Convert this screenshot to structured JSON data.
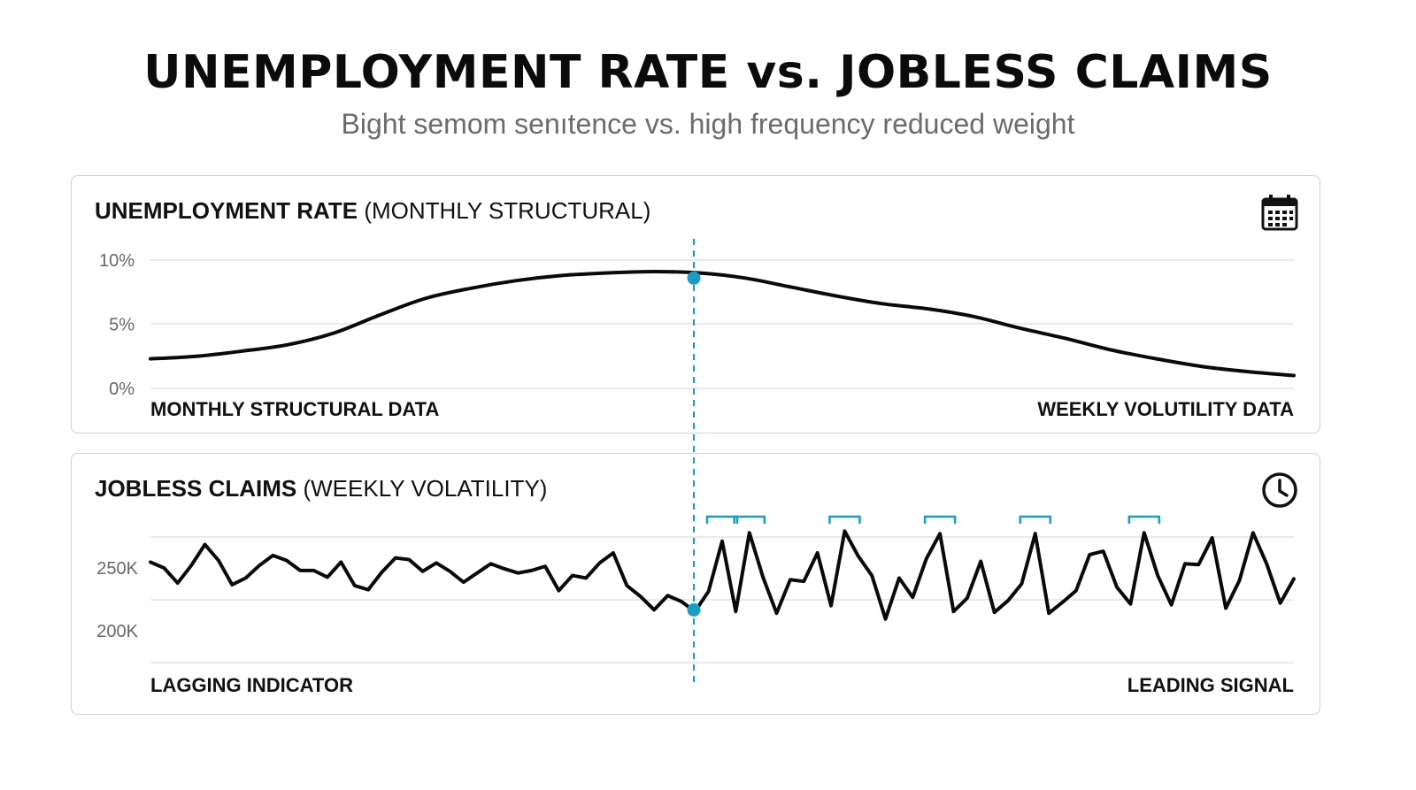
{
  "header": {
    "title": "UNEMPLOYMENT RATE vs. JOBLESS CLAIMS",
    "subtitle": "Bight semom senıtence vs. high frequency reduced weight"
  },
  "colors": {
    "line": "#0a0a0a",
    "accent": "#1a9cc4",
    "grid": "#dcdcdc",
    "tick": "#666666"
  },
  "icons": {
    "top_panel": "calendar-icon",
    "bottom_panel": "clock-icon"
  },
  "chart_data": [
    {
      "type": "line",
      "title_bold": "UNEMPLOYMENT RATE",
      "title_rest": "(MONTHLY STRUCTURAL)",
      "yticks": [
        "10%",
        "5%",
        "0%"
      ],
      "ytick_values": [
        10,
        5,
        0
      ],
      "ylim": [
        0,
        10
      ],
      "left_label": "MONTHLY STRUCTURAL DATA",
      "right_label": "WEEKLY VOLUTILITY DATA",
      "grid": true,
      "series": [
        {
          "values": [
            2.3,
            2.5,
            2.9,
            3.4,
            4.3,
            5.7,
            7.0,
            7.8,
            8.4,
            8.8,
            9.0,
            9.1,
            9.0,
            8.6,
            7.9,
            7.2,
            6.6,
            6.2,
            5.6,
            4.7,
            3.9,
            3.0,
            2.3,
            1.7,
            1.3,
            1.0
          ],
          "marker_index": 13
        }
      ]
    },
    {
      "type": "line",
      "title_bold": "JOBLESS CLAIMS",
      "title_rest": "(WEEKLY VOLATILITY)",
      "yticks": [
        "250K",
        "200K"
      ],
      "ytick_values": [
        250,
        200
      ],
      "ylim": [
        150,
        300
      ],
      "left_label": "LAGGING INDICATOR",
      "right_label": "LEADING SIGNAL",
      "grid": true,
      "series": [
        {
          "values": [
            270,
            263,
            245,
            266,
            291,
            272,
            243,
            251,
            266,
            278,
            272,
            260,
            260,
            252,
            270,
            242,
            237,
            258,
            275,
            273,
            259,
            269,
            259,
            246,
            257,
            268,
            262,
            257,
            260,
            265,
            236,
            254,
            251,
            269,
            281,
            242,
            229,
            213,
            230,
            223,
            211,
            235,
            295,
            211,
            305,
            252,
            209,
            249,
            247,
            281,
            218,
            307,
            277,
            254,
            202,
            251,
            228,
            274,
            304,
            211,
            227,
            271,
            210,
            224,
            244,
            304,
            209,
            222,
            236,
            279,
            283,
            240,
            220,
            305,
            254,
            219,
            268,
            267,
            299,
            215,
            248,
            305,
            268,
            221,
            250
          ],
          "marker_index": 37
        }
      ],
      "bracket_markers": 6
    }
  ]
}
